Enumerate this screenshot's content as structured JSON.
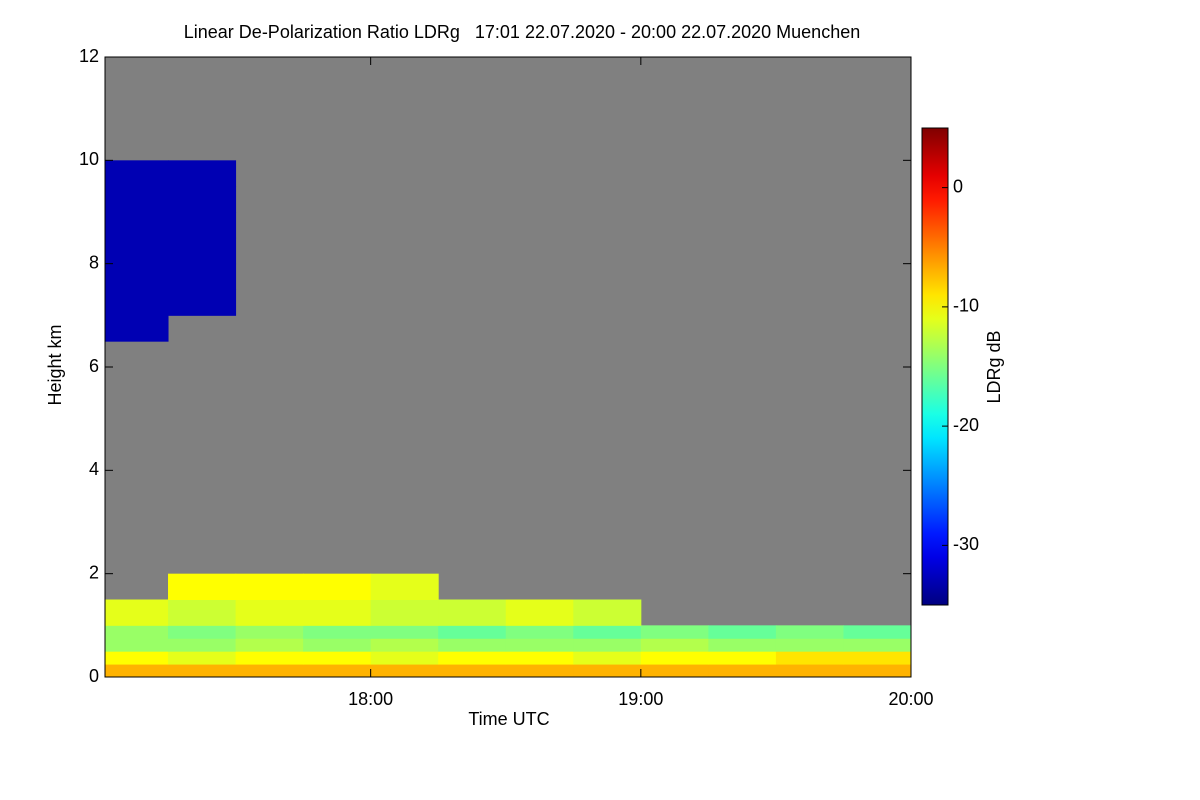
{
  "chart_data": {
    "type": "heatmap",
    "title": "Linear De-Polarization Ratio LDRg   17:01 22.07.2020 - 20:00 22.07.2020 Muenchen",
    "x_label": "Time UTC",
    "y_label": "Height km",
    "colorbar_label": "LDRg dB",
    "xlim": [
      17.0167,
      20.0
    ],
    "xticks": [
      {
        "value": 18,
        "label": "18:00"
      },
      {
        "value": 19,
        "label": "19:00"
      },
      {
        "value": 20,
        "label": "20:00"
      }
    ],
    "ylim": [
      0,
      12
    ],
    "yticks": [
      0,
      2,
      4,
      6,
      8,
      10,
      12
    ],
    "zlim": [
      -35,
      5
    ],
    "zticks": [
      -30,
      -20,
      -10,
      0
    ],
    "colormap": "jet",
    "background_color": "#808080",
    "x_edges": [
      17.0167,
      17.25,
      17.5,
      17.75,
      18.0,
      18.25,
      18.5,
      18.75,
      19.0,
      19.25,
      19.5,
      19.75,
      20.0
    ],
    "y_edges": [
      0,
      0.25,
      0.5,
      0.75,
      1.0,
      1.5,
      2.0,
      6.5,
      7.0,
      7.5,
      8.0,
      8.5,
      9.0,
      9.5,
      10.0
    ],
    "z": [
      [
        -7,
        -7,
        -7,
        -7,
        -7,
        -7,
        -7,
        -7,
        -7,
        -7,
        -7,
        -7
      ],
      [
        -10,
        -11,
        -10,
        -10,
        -11,
        -10,
        -10,
        -11,
        -10,
        -10,
        -9,
        -9
      ],
      [
        -14,
        -14,
        -13,
        -14,
        -13,
        -14,
        -14,
        -14,
        -13,
        -14,
        -14,
        -14
      ],
      [
        -14,
        -15,
        -14,
        -15,
        -15,
        -16,
        -15,
        -16,
        -15,
        -16,
        -15,
        -16
      ],
      [
        -11,
        -12,
        -11,
        -11,
        -12,
        -12,
        -11,
        -12,
        null,
        null,
        null,
        null
      ],
      [
        null,
        -10,
        -10,
        -10,
        -11,
        null,
        null,
        null,
        null,
        null,
        null,
        null
      ],
      [
        null,
        null,
        null,
        null,
        null,
        null,
        null,
        null,
        null,
        null,
        null,
        null
      ],
      [
        -33,
        null,
        null,
        null,
        null,
        null,
        null,
        null,
        null,
        null,
        null,
        null
      ],
      [
        -33,
        -33,
        null,
        null,
        null,
        null,
        null,
        null,
        null,
        null,
        null,
        null
      ],
      [
        -33,
        -33,
        null,
        null,
        null,
        null,
        null,
        null,
        null,
        null,
        null,
        null
      ],
      [
        -33,
        -33,
        null,
        null,
        null,
        null,
        null,
        null,
        null,
        null,
        null,
        null
      ],
      [
        -33,
        -33,
        null,
        null,
        null,
        null,
        null,
        null,
        null,
        null,
        null,
        null
      ],
      [
        -33,
        -33,
        null,
        null,
        null,
        null,
        null,
        null,
        null,
        null,
        null,
        null
      ],
      [
        -33,
        -33,
        null,
        null,
        null,
        null,
        null,
        null,
        null,
        null,
        null,
        null
      ]
    ]
  }
}
